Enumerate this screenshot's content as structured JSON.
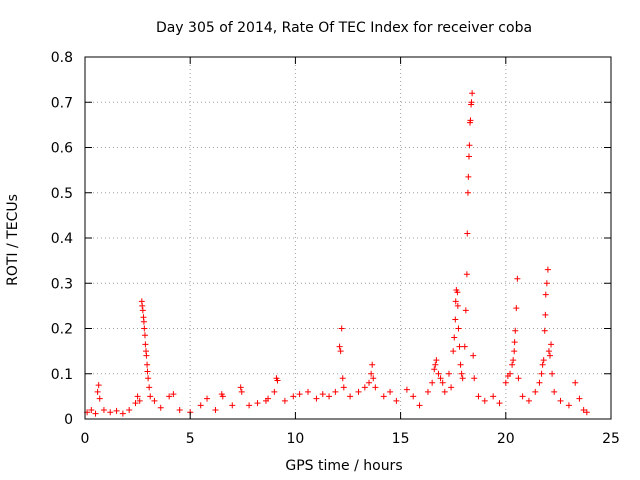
{
  "chart_data": {
    "type": "scatter",
    "title": "Day 305 of 2014, Rate Of TEC Index for receiver coba",
    "xlabel": "GPS time / hours",
    "ylabel": "ROTI / TECUs",
    "xlim": [
      0,
      25
    ],
    "ylim": [
      0,
      0.8
    ],
    "xticks": [
      0,
      5,
      10,
      15,
      20,
      25
    ],
    "xtick_labels": [
      "0",
      "5",
      "10",
      "15",
      "20",
      "25"
    ],
    "yticks": [
      0,
      0.1,
      0.2,
      0.3,
      0.4,
      0.5,
      0.6,
      0.7,
      0.8
    ],
    "ytick_labels": [
      "0",
      "0.1",
      "0.2",
      "0.3",
      "0.4",
      "0.5",
      "0.6",
      "0.7",
      "0.8"
    ],
    "grid": true,
    "marker": "+",
    "series": [
      {
        "name": "ROTI",
        "color": "#ff0000",
        "points": [
          [
            0.1,
            0.015
          ],
          [
            0.3,
            0.02
          ],
          [
            0.5,
            0.012
          ],
          [
            0.6,
            0.06
          ],
          [
            0.65,
            0.075
          ],
          [
            0.7,
            0.045
          ],
          [
            0.9,
            0.02
          ],
          [
            1.2,
            0.015
          ],
          [
            1.5,
            0.018
          ],
          [
            1.8,
            0.012
          ],
          [
            2.1,
            0.02
          ],
          [
            2.4,
            0.035
          ],
          [
            2.5,
            0.05
          ],
          [
            2.6,
            0.04
          ],
          [
            2.7,
            0.26
          ],
          [
            2.72,
            0.25
          ],
          [
            2.75,
            0.24
          ],
          [
            2.78,
            0.225
          ],
          [
            2.8,
            0.215
          ],
          [
            2.82,
            0.2
          ],
          [
            2.85,
            0.185
          ],
          [
            2.87,
            0.165
          ],
          [
            2.9,
            0.15
          ],
          [
            2.92,
            0.14
          ],
          [
            2.95,
            0.12
          ],
          [
            2.97,
            0.105
          ],
          [
            3.0,
            0.09
          ],
          [
            3.05,
            0.07
          ],
          [
            3.1,
            0.05
          ],
          [
            3.3,
            0.04
          ],
          [
            3.6,
            0.025
          ],
          [
            4.0,
            0.05
          ],
          [
            4.2,
            0.055
          ],
          [
            4.5,
            0.02
          ],
          [
            5.0,
            0.015
          ],
          [
            5.5,
            0.03
          ],
          [
            5.8,
            0.045
          ],
          [
            6.2,
            0.02
          ],
          [
            6.5,
            0.055
          ],
          [
            6.55,
            0.05
          ],
          [
            7.0,
            0.03
          ],
          [
            7.4,
            0.07
          ],
          [
            7.45,
            0.06
          ],
          [
            7.8,
            0.03
          ],
          [
            8.2,
            0.035
          ],
          [
            8.6,
            0.04
          ],
          [
            8.7,
            0.045
          ],
          [
            9.0,
            0.06
          ],
          [
            9.1,
            0.09
          ],
          [
            9.15,
            0.085
          ],
          [
            9.5,
            0.04
          ],
          [
            9.9,
            0.05
          ],
          [
            10.2,
            0.055
          ],
          [
            10.6,
            0.06
          ],
          [
            11.0,
            0.045
          ],
          [
            11.3,
            0.055
          ],
          [
            11.6,
            0.05
          ],
          [
            11.9,
            0.06
          ],
          [
            12.1,
            0.16
          ],
          [
            12.15,
            0.15
          ],
          [
            12.2,
            0.2
          ],
          [
            12.25,
            0.09
          ],
          [
            12.3,
            0.07
          ],
          [
            12.6,
            0.05
          ],
          [
            13.0,
            0.06
          ],
          [
            13.3,
            0.07
          ],
          [
            13.5,
            0.08
          ],
          [
            13.6,
            0.1
          ],
          [
            13.65,
            0.12
          ],
          [
            13.7,
            0.09
          ],
          [
            13.8,
            0.07
          ],
          [
            14.2,
            0.05
          ],
          [
            14.5,
            0.06
          ],
          [
            14.8,
            0.04
          ],
          [
            15.3,
            0.065
          ],
          [
            15.6,
            0.05
          ],
          [
            15.9,
            0.03
          ],
          [
            16.3,
            0.06
          ],
          [
            16.5,
            0.08
          ],
          [
            16.6,
            0.11
          ],
          [
            16.65,
            0.12
          ],
          [
            16.7,
            0.13
          ],
          [
            16.8,
            0.1
          ],
          [
            16.9,
            0.09
          ],
          [
            17.0,
            0.08
          ],
          [
            17.1,
            0.06
          ],
          [
            17.3,
            0.1
          ],
          [
            17.4,
            0.07
          ],
          [
            17.5,
            0.15
          ],
          [
            17.55,
            0.18
          ],
          [
            17.6,
            0.22
          ],
          [
            17.62,
            0.26
          ],
          [
            17.65,
            0.285
          ],
          [
            17.7,
            0.28
          ],
          [
            17.72,
            0.25
          ],
          [
            17.75,
            0.2
          ],
          [
            17.8,
            0.16
          ],
          [
            17.85,
            0.12
          ],
          [
            17.9,
            0.1
          ],
          [
            17.95,
            0.09
          ],
          [
            18.05,
            0.16
          ],
          [
            18.1,
            0.24
          ],
          [
            18.15,
            0.32
          ],
          [
            18.17,
            0.41
          ],
          [
            18.2,
            0.5
          ],
          [
            18.22,
            0.535
          ],
          [
            18.25,
            0.58
          ],
          [
            18.27,
            0.605
          ],
          [
            18.3,
            0.655
          ],
          [
            18.32,
            0.66
          ],
          [
            18.35,
            0.695
          ],
          [
            18.37,
            0.7
          ],
          [
            18.4,
            0.72
          ],
          [
            18.45,
            0.14
          ],
          [
            18.5,
            0.09
          ],
          [
            18.7,
            0.05
          ],
          [
            19.0,
            0.04
          ],
          [
            19.4,
            0.05
          ],
          [
            19.7,
            0.035
          ],
          [
            20.0,
            0.08
          ],
          [
            20.1,
            0.095
          ],
          [
            20.2,
            0.1
          ],
          [
            20.3,
            0.12
          ],
          [
            20.35,
            0.13
          ],
          [
            20.4,
            0.15
          ],
          [
            20.42,
            0.17
          ],
          [
            20.45,
            0.195
          ],
          [
            20.5,
            0.245
          ],
          [
            20.55,
            0.31
          ],
          [
            20.6,
            0.09
          ],
          [
            20.8,
            0.05
          ],
          [
            21.1,
            0.04
          ],
          [
            21.4,
            0.06
          ],
          [
            21.6,
            0.08
          ],
          [
            21.7,
            0.1
          ],
          [
            21.75,
            0.12
          ],
          [
            21.8,
            0.13
          ],
          [
            21.85,
            0.195
          ],
          [
            21.88,
            0.23
          ],
          [
            21.9,
            0.275
          ],
          [
            21.95,
            0.3
          ],
          [
            22.0,
            0.33
          ],
          [
            22.05,
            0.15
          ],
          [
            22.1,
            0.14
          ],
          [
            22.15,
            0.165
          ],
          [
            22.2,
            0.1
          ],
          [
            22.3,
            0.06
          ],
          [
            22.6,
            0.04
          ],
          [
            23.0,
            0.03
          ],
          [
            23.3,
            0.08
          ],
          [
            23.5,
            0.045
          ],
          [
            23.7,
            0.02
          ],
          [
            23.85,
            0.015
          ]
        ]
      }
    ]
  }
}
